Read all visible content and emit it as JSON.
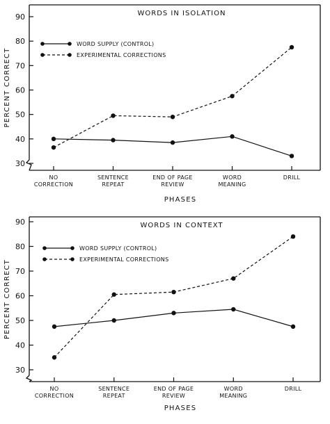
{
  "chart_data": [
    {
      "type": "line",
      "title": "WORDS IN ISOLATION",
      "xlabel": "PHASES",
      "ylabel": "PERCENT CORRECT",
      "ylim": [
        30,
        90
      ],
      "yticks": [
        30,
        40,
        50,
        60,
        70,
        80,
        90
      ],
      "categories": [
        [
          "NO",
          "CORRECTION"
        ],
        [
          "SENTENCE",
          "REPEAT"
        ],
        [
          "END OF PAGE",
          "REVIEW"
        ],
        [
          "WORD",
          "MEANING"
        ],
        [
          "DRILL"
        ]
      ],
      "series": [
        {
          "name": "WORD SUPPLY (CONTROL)",
          "style": "solid",
          "values": [
            40,
            39.5,
            38.5,
            41,
            33
          ]
        },
        {
          "name": "EXPERIMENTAL CORRECTIONS",
          "style": "dashed",
          "values": [
            36.5,
            49.5,
            49,
            57.5,
            77.5
          ]
        }
      ],
      "legend_position": "top-left",
      "grid": false
    },
    {
      "type": "line",
      "title": "WORDS IN CONTEXT",
      "xlabel": "PHASES",
      "ylabel": "PERCENT CORRECT",
      "ylim": [
        30,
        90
      ],
      "yticks": [
        30,
        40,
        50,
        60,
        70,
        80,
        90
      ],
      "categories": [
        [
          "NO",
          "CORRECTION"
        ],
        [
          "SENTENCE",
          "REPEAT"
        ],
        [
          "END OF PAGE",
          "REVIEW"
        ],
        [
          "WORD",
          "MEANING"
        ],
        [
          "DRILL"
        ]
      ],
      "series": [
        {
          "name": "WORD SUPPLY (CONTROL)",
          "style": "solid",
          "values": [
            47.5,
            50,
            53,
            54.5,
            47.5
          ]
        },
        {
          "name": "EXPERIMENTAL CORRECTIONS",
          "style": "dashed",
          "values": [
            35,
            60.5,
            61.5,
            67,
            84
          ]
        }
      ],
      "legend_position": "top-left",
      "grid": false
    }
  ]
}
